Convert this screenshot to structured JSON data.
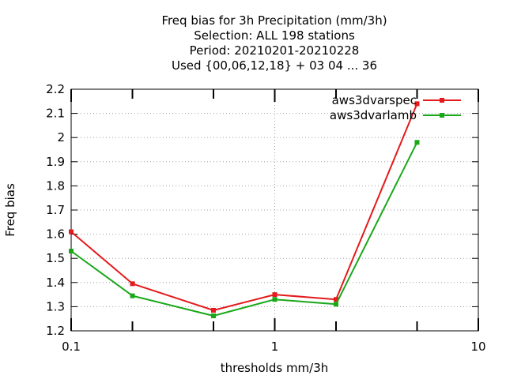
{
  "chart_data": {
    "type": "line",
    "title_lines": [
      "Freq bias  for 3h Precipitation (mm/3h)",
      "Selection: ALL    198 stations",
      "Period: 20210201-20210228",
      "Used {00,06,12,18} + 03 04 ... 36"
    ],
    "xlabel": "thresholds mm/3h",
    "ylabel": "Freq bias",
    "x_scale": "log",
    "xlim": [
      0.1,
      10
    ],
    "ylim": [
      1.2,
      2.2
    ],
    "x_tick_labels": [
      {
        "value": 0.1,
        "label": "0.1"
      },
      {
        "value": 1,
        "label": "1"
      },
      {
        "value": 10,
        "label": "10"
      }
    ],
    "x_minor_ticks": [
      0.2,
      0.5,
      2,
      5
    ],
    "y_tick_labels": [
      {
        "value": 1.2,
        "label": "1.2"
      },
      {
        "value": 1.3,
        "label": "1.3"
      },
      {
        "value": 1.4,
        "label": "1.4"
      },
      {
        "value": 1.5,
        "label": "1.5"
      },
      {
        "value": 1.6,
        "label": "1.6"
      },
      {
        "value": 1.7,
        "label": "1.7"
      },
      {
        "value": 1.8,
        "label": "1.8"
      },
      {
        "value": 1.9,
        "label": "1.9"
      },
      {
        "value": 2.0,
        "label": "2"
      },
      {
        "value": 2.1,
        "label": "2.1"
      },
      {
        "value": 2.2,
        "label": "2.2"
      }
    ],
    "grid": true,
    "legend_position": "top-right",
    "x": [
      0.1,
      0.2,
      0.5,
      1,
      2,
      5
    ],
    "series": [
      {
        "name": "aws3dvarspec",
        "color": "#e41a1c",
        "values": [
          1.61,
          1.395,
          1.285,
          1.35,
          1.33,
          2.14
        ]
      },
      {
        "name": "aws3dvarlamb",
        "color": "#1aa81a",
        "values": [
          1.53,
          1.345,
          1.262,
          1.33,
          1.31,
          1.98
        ]
      }
    ]
  }
}
